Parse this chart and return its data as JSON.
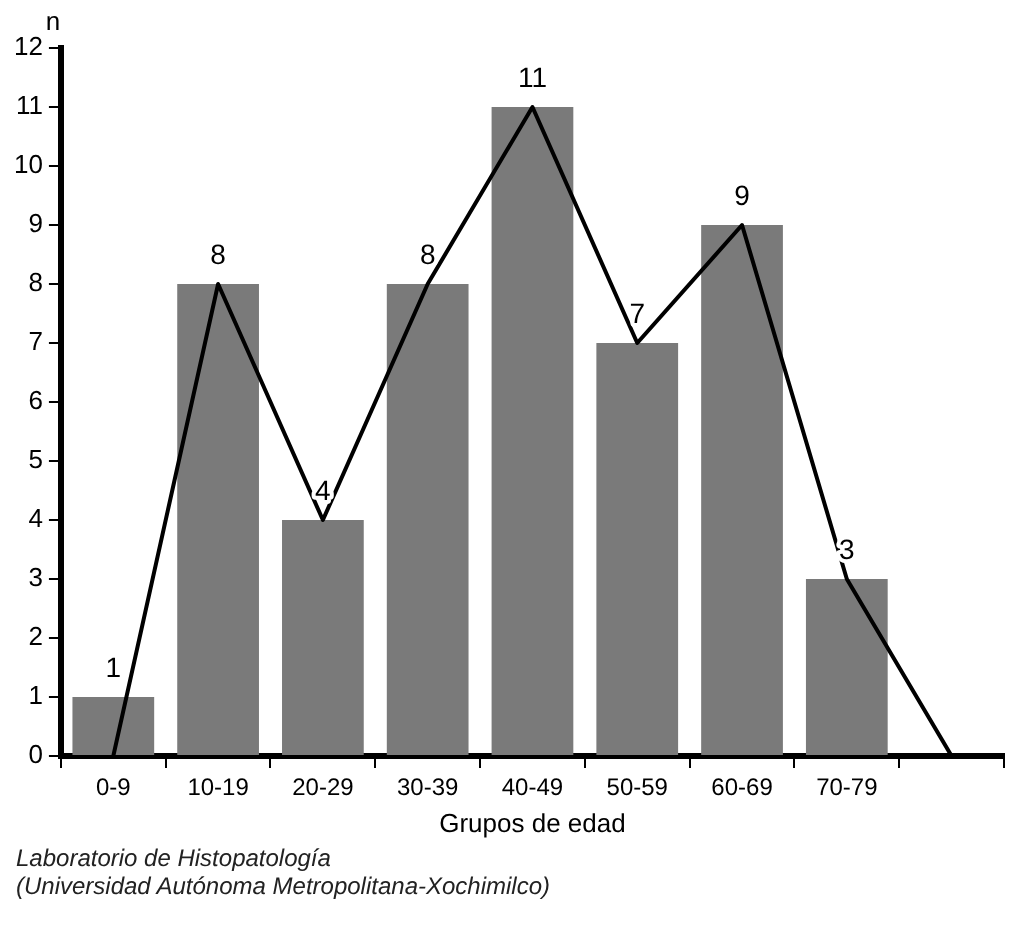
{
  "chart_data": {
    "type": "bar",
    "xlabel": "Grupos de edad",
    "ylabel": "n",
    "categories": [
      "0-9",
      "10-19",
      "20-29",
      "30-39",
      "40-49",
      "50-59",
      "60-69",
      "70-79",
      null
    ],
    "series": [
      {
        "color": "#7a7a7a",
        "values": [
          1,
          8,
          4,
          8,
          11,
          7,
          9,
          3,
          null
        ],
        "data_labels": true
      },
      {
        "type": "line",
        "color": "#000000",
        "values": [
          0,
          8,
          4,
          8,
          11,
          7,
          9,
          3,
          0
        ],
        "marker": "none"
      }
    ],
    "ylim": [
      0,
      12
    ],
    "yticks": [
      0,
      1,
      2,
      3,
      4,
      5,
      6,
      7,
      8,
      9,
      10,
      11,
      12
    ],
    "grid": false,
    "legend": false,
    "annotations": [
      "Laboratorio de Histopatología",
      "(Universidad Autónoma Metropolitana-Xochimilco)"
    ]
  }
}
